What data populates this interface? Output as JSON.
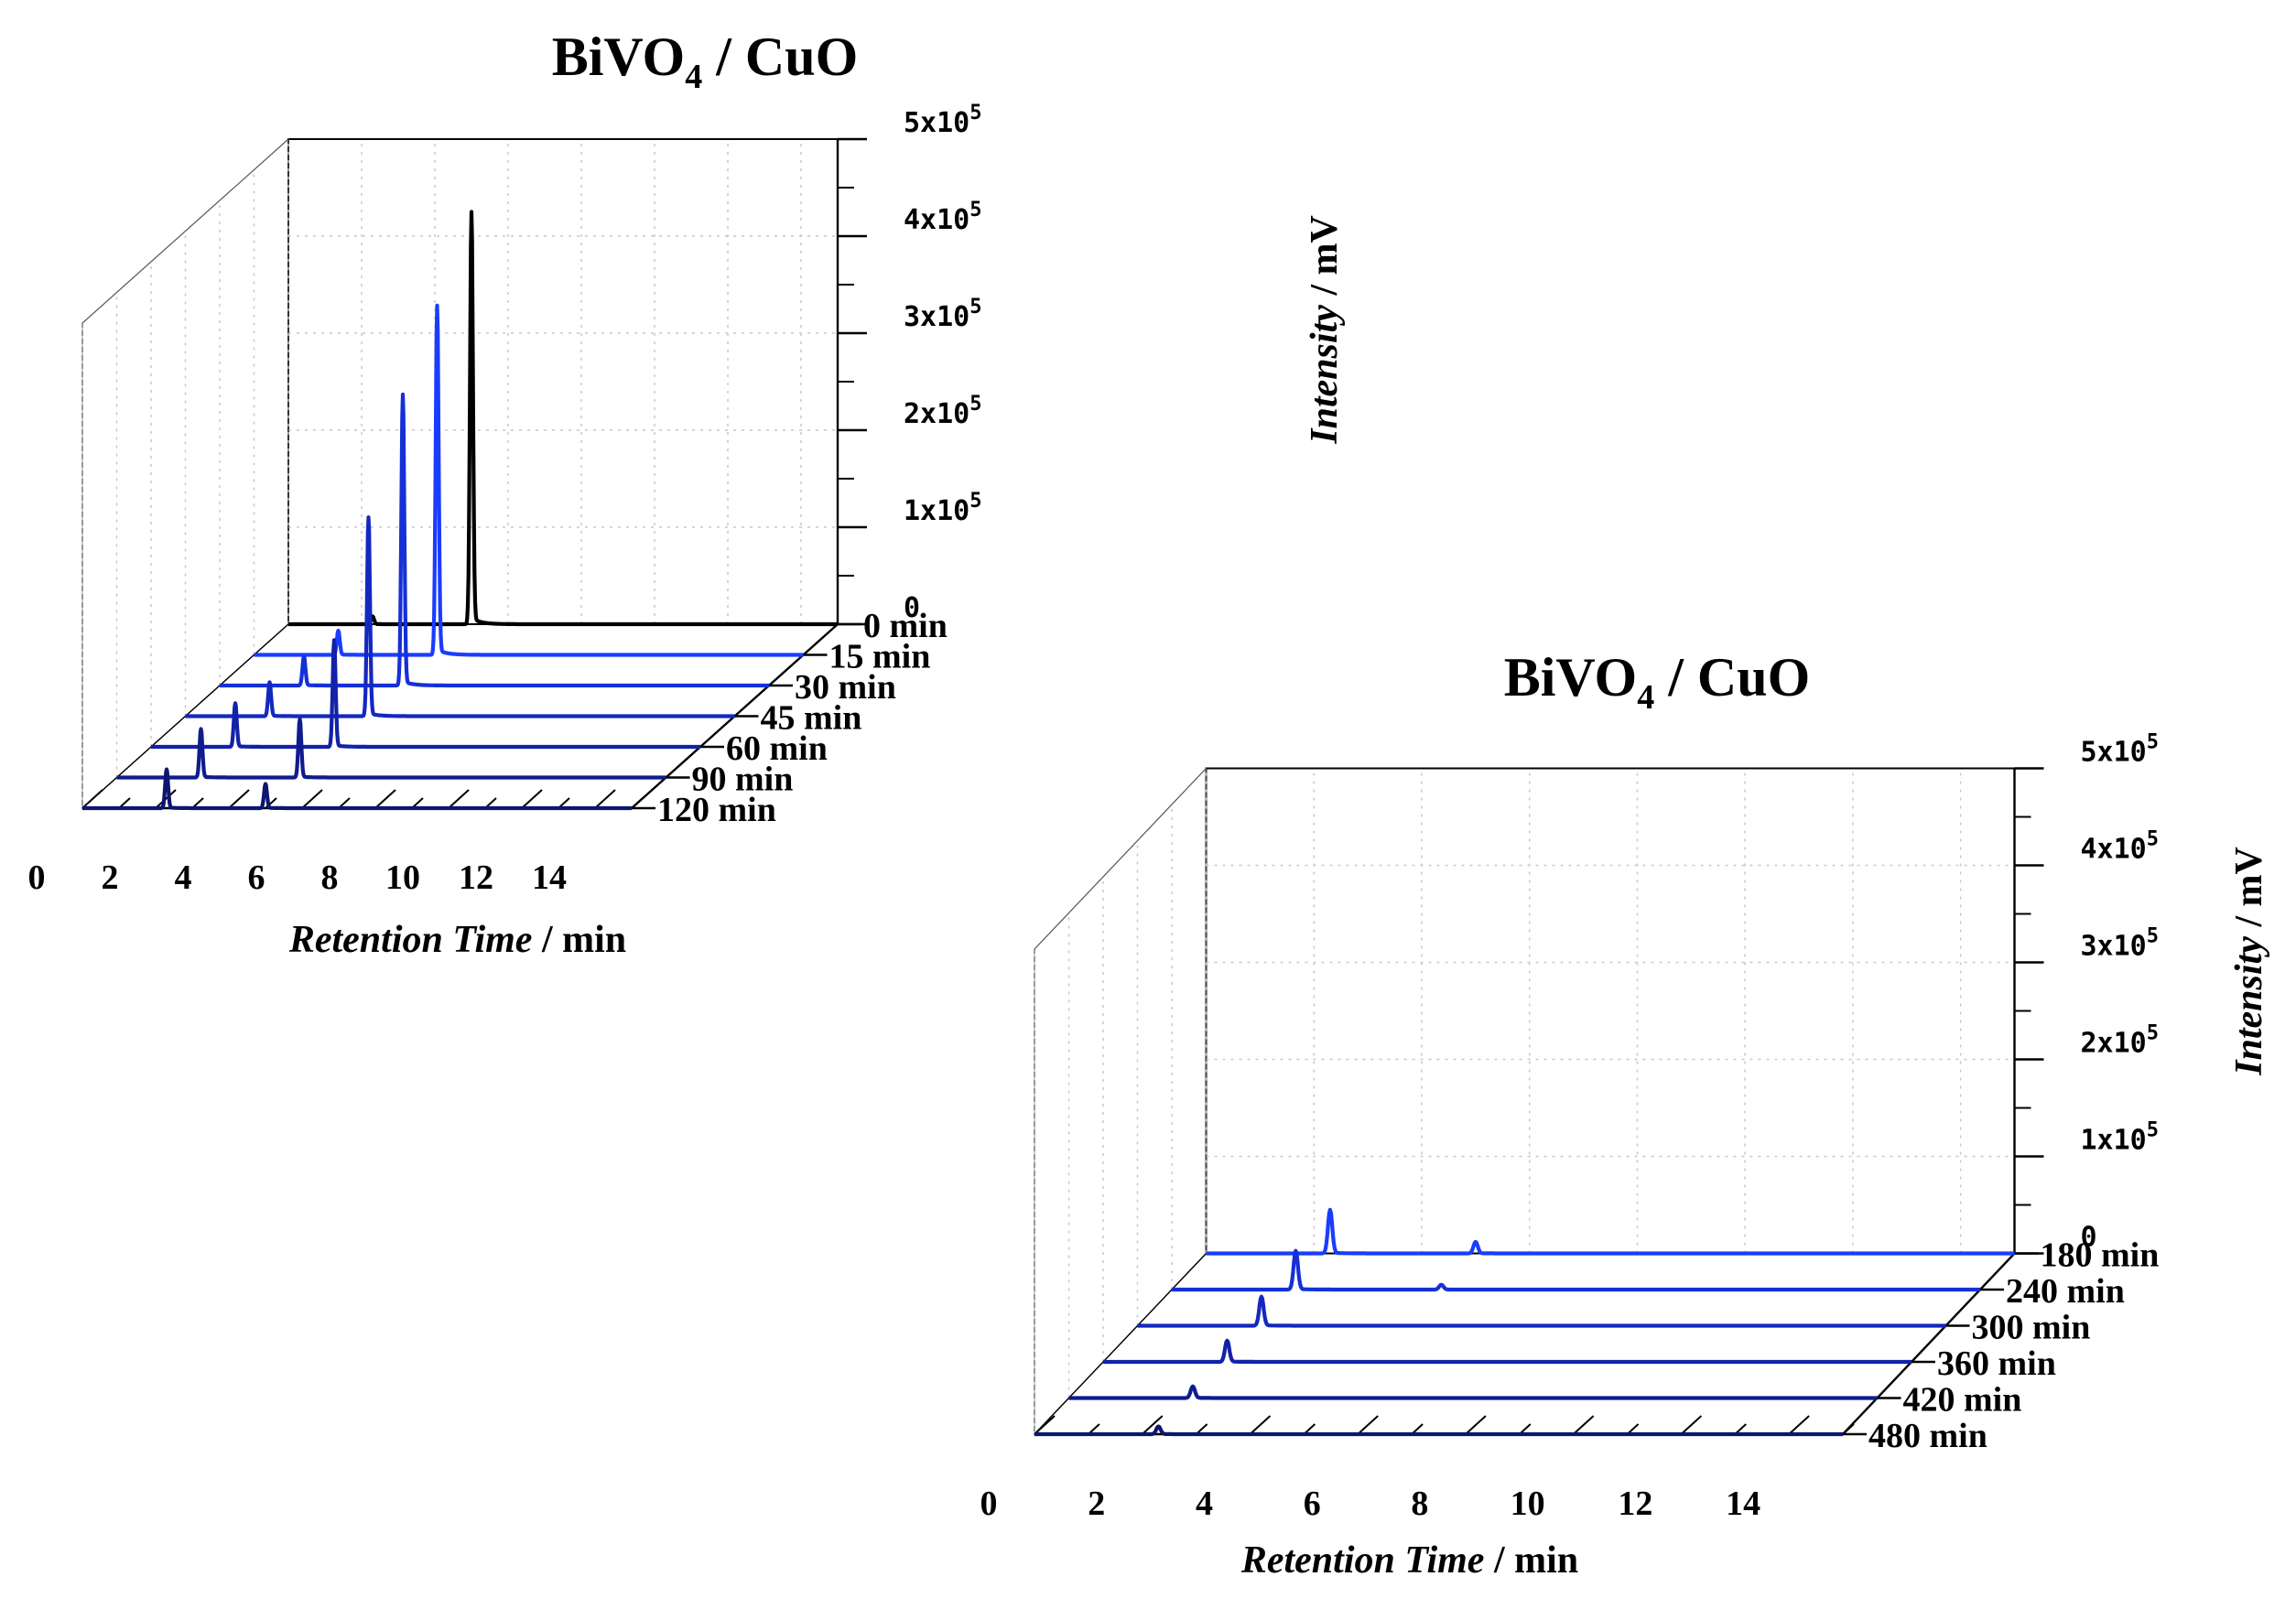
{
  "chart_data": [
    {
      "type": "line",
      "title": "BiVO",
      "title_subscript": "4",
      "title_suffix": " / CuO",
      "xlabel": "Retention Time",
      "xlabel_unit": " / min",
      "ylabel": "Intensity",
      "ylabel_unit": " / mV",
      "xlim": [
        0,
        15
      ],
      "ylim": [
        0,
        500000
      ],
      "x_ticks": [
        "0",
        "2",
        "4",
        "6",
        "8",
        "10",
        "12",
        "14"
      ],
      "y_ticks": [
        {
          "mant": "0",
          "exp": ""
        },
        {
          "mant": "1x10",
          "exp": "5"
        },
        {
          "mant": "2x10",
          "exp": "5"
        },
        {
          "mant": "3x10",
          "exp": "5"
        },
        {
          "mant": "4x10",
          "exp": "5"
        },
        {
          "mant": "5x10",
          "exp": "5"
        }
      ],
      "series": [
        {
          "name": "0 min",
          "color": "#000000",
          "peaks": [
            {
              "x": 2.3,
              "y": 8000
            },
            {
              "x": 5.0,
              "y": 425000
            }
          ]
        },
        {
          "name": "15 min",
          "color": "#1a3cff",
          "peaks": [
            {
              "x": 2.3,
              "y": 25000
            },
            {
              "x": 5.0,
              "y": 360000
            }
          ]
        },
        {
          "name": "30 min",
          "color": "#1530d6",
          "peaks": [
            {
              "x": 2.3,
              "y": 30000
            },
            {
              "x": 5.0,
              "y": 300000
            }
          ]
        },
        {
          "name": "45 min",
          "color": "#1428c0",
          "peaks": [
            {
              "x": 2.3,
              "y": 35000
            },
            {
              "x": 5.0,
              "y": 205000
            }
          ]
        },
        {
          "name": "60 min",
          "color": "#1222a8",
          "peaks": [
            {
              "x": 2.3,
              "y": 45000
            },
            {
              "x": 5.0,
              "y": 110000
            }
          ]
        },
        {
          "name": "90 min",
          "color": "#0f1c8c",
          "peaks": [
            {
              "x": 2.3,
              "y": 50000
            },
            {
              "x": 5.0,
              "y": 60000
            }
          ]
        },
        {
          "name": "120 min",
          "color": "#0c1670",
          "peaks": [
            {
              "x": 2.3,
              "y": 40000
            },
            {
              "x": 5.0,
              "y": 25000
            }
          ]
        }
      ]
    },
    {
      "type": "line",
      "title": "BiVO",
      "title_subscript": "4",
      "title_suffix": " / CuO",
      "xlabel": "Retention Time",
      "xlabel_unit": " / min",
      "ylabel": "Intensity",
      "ylabel_unit": " / mV",
      "xlim": [
        0,
        15
      ],
      "ylim": [
        0,
        500000
      ],
      "x_ticks": [
        "0",
        "2",
        "4",
        "6",
        "8",
        "10",
        "12",
        "14"
      ],
      "y_ticks": [
        {
          "mant": "0",
          "exp": ""
        },
        {
          "mant": "1x10",
          "exp": "5"
        },
        {
          "mant": "2x10",
          "exp": "5"
        },
        {
          "mant": "3x10",
          "exp": "5"
        },
        {
          "mant": "4x10",
          "exp": "5"
        },
        {
          "mant": "5x10",
          "exp": "5"
        }
      ],
      "series": [
        {
          "name": "180 min",
          "color": "#1a3cff",
          "peaks": [
            {
              "x": 2.3,
              "y": 45000
            },
            {
              "x": 5.0,
              "y": 12000
            }
          ]
        },
        {
          "name": "240 min",
          "color": "#1530d6",
          "peaks": [
            {
              "x": 2.3,
              "y": 40000
            },
            {
              "x": 5.0,
              "y": 5000
            }
          ]
        },
        {
          "name": "300 min",
          "color": "#1428c0",
          "peaks": [
            {
              "x": 2.3,
              "y": 30000
            }
          ]
        },
        {
          "name": "360 min",
          "color": "#1222a8",
          "peaks": [
            {
              "x": 2.3,
              "y": 22000
            }
          ]
        },
        {
          "name": "420 min",
          "color": "#0f1c8c",
          "peaks": [
            {
              "x": 2.3,
              "y": 12000
            }
          ]
        },
        {
          "name": "480 min",
          "color": "#0c1670",
          "peaks": [
            {
              "x": 2.3,
              "y": 8000
            }
          ]
        }
      ]
    }
  ]
}
